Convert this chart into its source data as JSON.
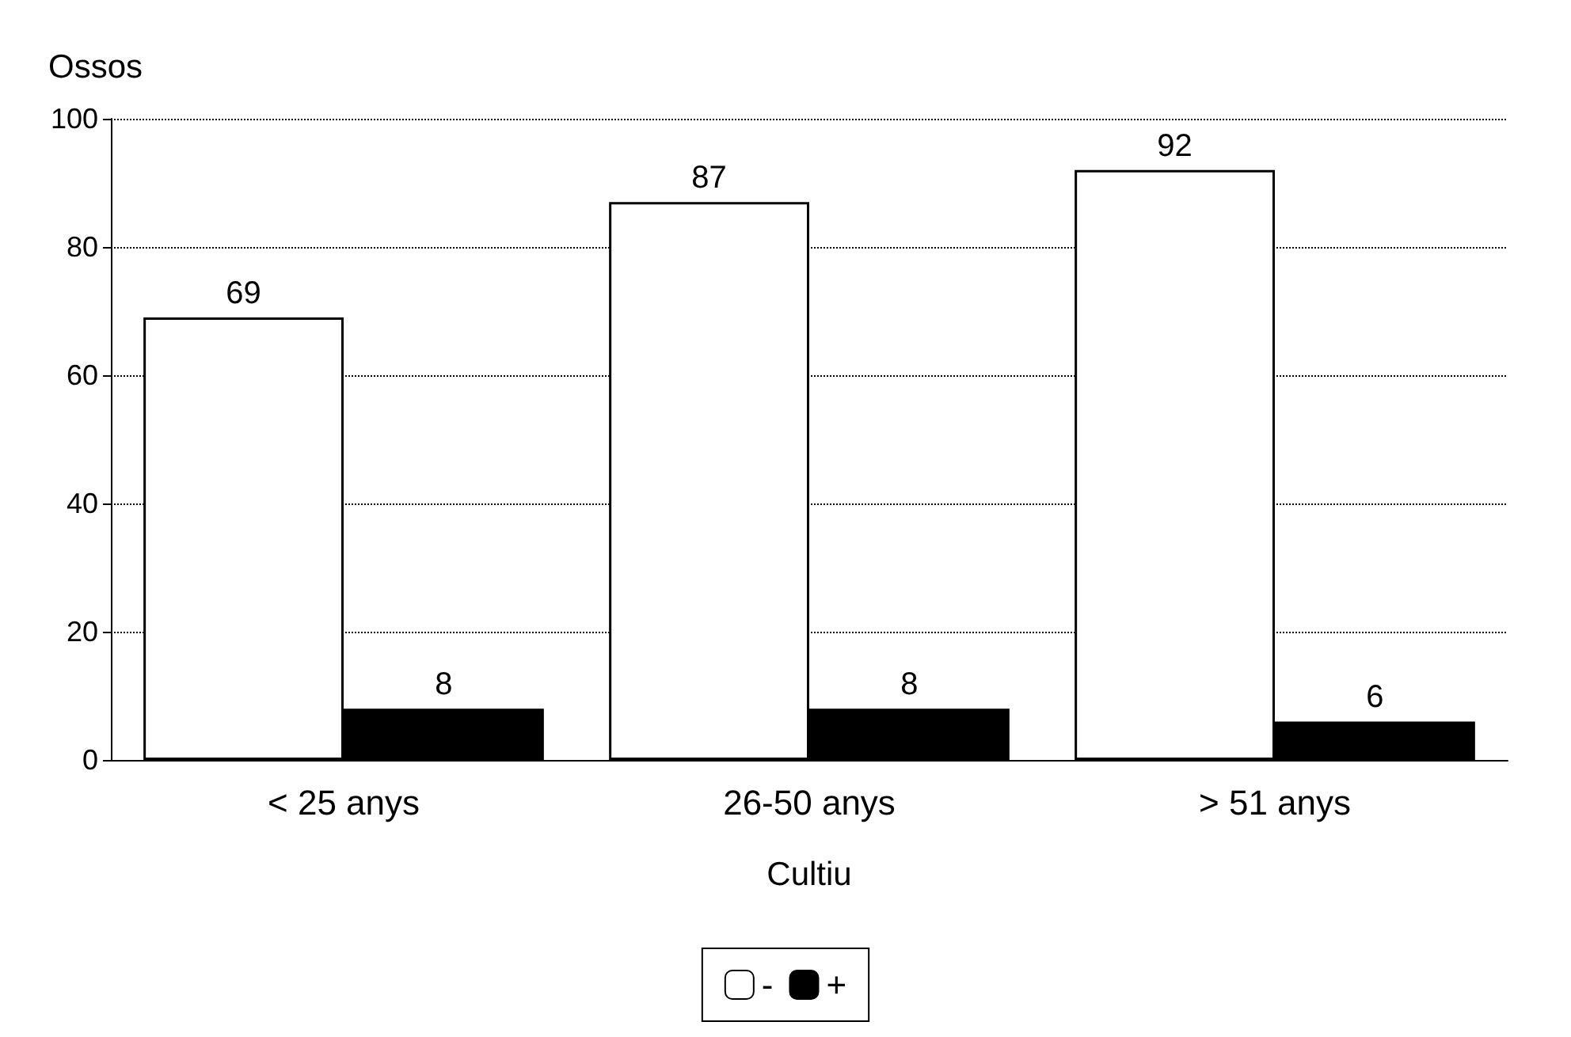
{
  "chart_data": {
    "type": "bar",
    "ylabel": "Ossos",
    "xlabel": "Cultiu",
    "categories": [
      "< 25 anys",
      "26-50 anys",
      "> 51 anys"
    ],
    "series": [
      {
        "name": "-",
        "color": "#ffffff",
        "values": [
          69,
          87,
          92
        ]
      },
      {
        "name": "+",
        "color": "#000000",
        "values": [
          8,
          8,
          6
        ]
      }
    ],
    "ylim": [
      0,
      100
    ],
    "yticks": [
      0,
      20,
      40,
      60,
      80,
      100
    ],
    "grid": "y",
    "legend": "bottom",
    "data_labels": true
  }
}
